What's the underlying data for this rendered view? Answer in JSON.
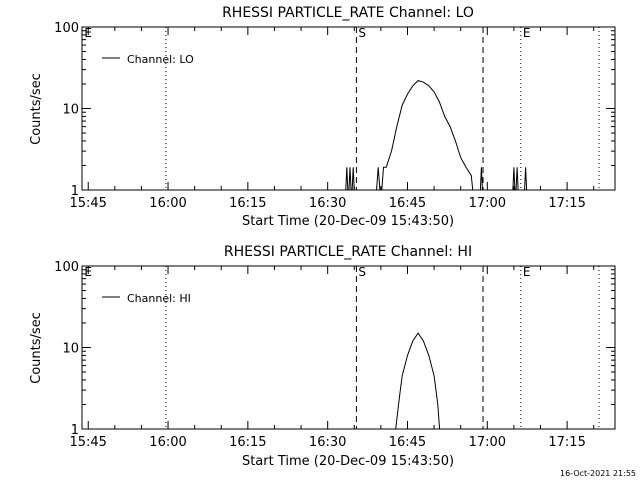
{
  "footer": {
    "timestamp": "16-Oct-2021 21:55"
  },
  "chart_data": [
    {
      "type": "line",
      "title": "RHESSI PARTICLE_RATE Channel: LO",
      "xlabel": "Start Time (20-Dec-09 15:43:50)",
      "ylabel": "Counts/sec",
      "yscale": "log",
      "ylim": [
        1,
        100
      ],
      "xlim_min": [
        943.83,
        1044
      ],
      "x_ticks": [
        {
          "t": 945,
          "label": "15:45"
        },
        {
          "t": 960,
          "label": "16:00"
        },
        {
          "t": 975,
          "label": "16:15"
        },
        {
          "t": 990,
          "label": "16:30"
        },
        {
          "t": 1005,
          "label": "16:45"
        },
        {
          "t": 1020,
          "label": "17:00"
        },
        {
          "t": 1035,
          "label": "17:15"
        }
      ],
      "y_ticks": [
        {
          "v": 1,
          "label": "1"
        },
        {
          "v": 10,
          "label": "10"
        },
        {
          "v": 100,
          "label": "100"
        }
      ],
      "legend": "Channel: LO",
      "markers": [
        {
          "t": 943.9,
          "style": "none",
          "label": "E"
        },
        {
          "t": 959.6,
          "style": "dotted",
          "label": ""
        },
        {
          "t": 995.4,
          "style": "dashed",
          "label": "S"
        },
        {
          "t": 1019.2,
          "style": "dashed",
          "label": ""
        },
        {
          "t": 1026.3,
          "style": "dotted",
          "label": "E"
        },
        {
          "t": 1041.0,
          "style": "dotted",
          "label": ""
        }
      ],
      "series": [
        {
          "name": "Channel: LO",
          "segments": [
            [
              [
                993.3,
                0.7
              ],
              [
                993.6,
                1.9
              ],
              [
                993.9,
                0.7
              ],
              [
                994.2,
                1.9
              ],
              [
                994.5,
                0.7
              ],
              [
                994.8,
                1.9
              ],
              [
                995.1,
                0.7
              ]
            ],
            [
              [
                999.0,
                0.7
              ],
              [
                999.5,
                1.9
              ],
              [
                1000.0,
                0.7
              ],
              [
                1000.5,
                1.9
              ],
              [
                1001.0,
                1.9
              ],
              [
                1002.0,
                3.0
              ],
              [
                1003.0,
                6.0
              ],
              [
                1004.0,
                11.0
              ],
              [
                1005.0,
                15.0
              ],
              [
                1006.0,
                19.0
              ],
              [
                1007.0,
                22.0
              ],
              [
                1008.0,
                21.0
              ],
              [
                1009.0,
                19.0
              ],
              [
                1010.0,
                16.0
              ],
              [
                1011.0,
                12.0
              ],
              [
                1012.0,
                8.0
              ],
              [
                1013.0,
                6.0
              ],
              [
                1014.0,
                4.0
              ],
              [
                1015.0,
                2.5
              ],
              [
                1016.0,
                1.9
              ],
              [
                1017.0,
                1.5
              ],
              [
                1017.5,
                0.7
              ]
            ],
            [
              [
                1018.6,
                0.7
              ],
              [
                1018.9,
                1.9
              ],
              [
                1019.2,
                0.7
              ]
            ],
            [
              [
                1024.7,
                0.7
              ],
              [
                1025.0,
                1.9
              ],
              [
                1025.3,
                0.7
              ],
              [
                1025.6,
                1.9
              ],
              [
                1025.9,
                0.7
              ]
            ],
            [
              [
                1026.9,
                0.7
              ],
              [
                1027.2,
                1.9
              ],
              [
                1027.5,
                0.7
              ]
            ]
          ]
        }
      ]
    },
    {
      "type": "line",
      "title": "RHESSI PARTICLE_RATE Channel: HI",
      "xlabel": "Start Time (20-Dec-09 15:43:50)",
      "ylabel": "Counts/sec",
      "yscale": "log",
      "ylim": [
        1,
        100
      ],
      "xlim_min": [
        943.83,
        1044
      ],
      "x_ticks": [
        {
          "t": 945,
          "label": "15:45"
        },
        {
          "t": 960,
          "label": "16:00"
        },
        {
          "t": 975,
          "label": "16:15"
        },
        {
          "t": 990,
          "label": "16:30"
        },
        {
          "t": 1005,
          "label": "16:45"
        },
        {
          "t": 1020,
          "label": "17:00"
        },
        {
          "t": 1035,
          "label": "17:15"
        }
      ],
      "y_ticks": [
        {
          "v": 1,
          "label": "1"
        },
        {
          "v": 10,
          "label": "10"
        },
        {
          "v": 100,
          "label": "100"
        }
      ],
      "legend": "Channel: HI",
      "markers": [
        {
          "t": 943.9,
          "style": "none",
          "label": "E"
        },
        {
          "t": 959.6,
          "style": "dotted",
          "label": ""
        },
        {
          "t": 995.4,
          "style": "dashed",
          "label": "S"
        },
        {
          "t": 1019.2,
          "style": "dashed",
          "label": ""
        },
        {
          "t": 1026.3,
          "style": "dotted",
          "label": "E"
        },
        {
          "t": 1041.0,
          "style": "dotted",
          "label": ""
        }
      ],
      "series": [
        {
          "name": "Channel: HI",
          "segments": [
            [
              [
                1002.5,
                0.7
              ],
              [
                1003.5,
                2.5
              ],
              [
                1004.0,
                4.5
              ],
              [
                1005.0,
                8.0
              ],
              [
                1006.0,
                12.0
              ],
              [
                1007.0,
                15.0
              ],
              [
                1008.0,
                12.0
              ],
              [
                1009.0,
                8.0
              ],
              [
                1010.0,
                4.5
              ],
              [
                1010.7,
                2.0
              ],
              [
                1011.2,
                0.7
              ]
            ]
          ]
        }
      ]
    }
  ]
}
